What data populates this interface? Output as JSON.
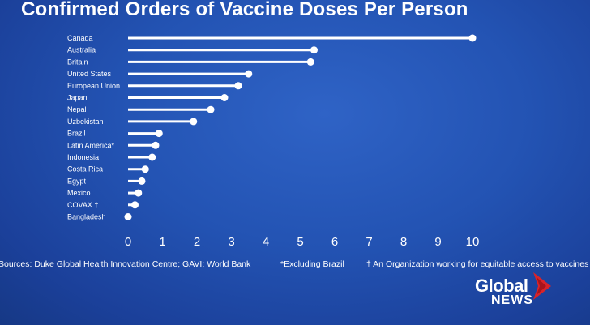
{
  "chart_data": {
    "type": "bar",
    "orientation": "horizontal",
    "style": "lollipop",
    "title": "Confirmed Orders of Vaccine Doses Per Person",
    "categories": [
      "Canada",
      "Australia",
      "Britain",
      "United States",
      "European Union",
      "Japan",
      "Nepal",
      "Uzbekistan",
      "Brazil",
      "Latin America*",
      "Indonesia",
      "Costa Rica",
      "Egypt",
      "Mexico",
      "COVAX †",
      "Bangladesh"
    ],
    "values": [
      10.0,
      5.4,
      5.3,
      3.5,
      3.2,
      2.8,
      2.4,
      1.9,
      0.9,
      0.8,
      0.7,
      0.5,
      0.4,
      0.3,
      0.2,
      0.0
    ],
    "xlim": [
      0,
      10
    ],
    "xticks": [
      "0",
      "1",
      "2",
      "3",
      "4",
      "5",
      "6",
      "7",
      "8",
      "9",
      "10"
    ],
    "xlabel": "",
    "ylabel": "",
    "grid": false,
    "bar_color": "#ffffff"
  },
  "footnotes": {
    "sources": "Sources: Duke Global Health Innovation Centre; GAVI; World Bank",
    "excluding": "*Excluding Brazil",
    "covax": "† An Organization working for equitable access to vaccines"
  },
  "logo": {
    "word": "Global",
    "sub": "NEWS",
    "accent": "#d8232a"
  }
}
